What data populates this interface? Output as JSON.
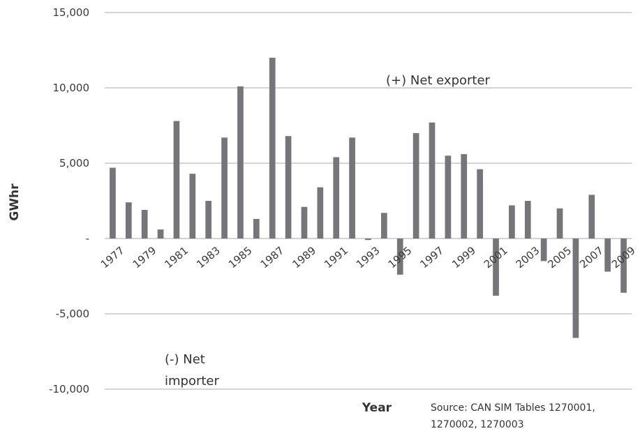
{
  "chart_data": {
    "type": "bar",
    "ylabel": "GWhr",
    "xlabel": "Year",
    "ylim": [
      -10000,
      15000
    ],
    "yticks": [
      15000,
      10000,
      5000,
      0,
      -5000,
      -10000
    ],
    "ytick_labels": [
      "15,000",
      "10,000",
      "5,000",
      "-",
      "-5,000",
      "-10,000"
    ],
    "grid": true,
    "legend": "none",
    "categories": [
      "1977",
      "1978",
      "1979",
      "1980",
      "1981",
      "1982",
      "1983",
      "1984",
      "1985",
      "1986",
      "1987",
      "1988",
      "1989",
      "1990",
      "1991",
      "1992",
      "1993",
      "1994",
      "1995",
      "1996",
      "1997",
      "1998",
      "1999",
      "2000",
      "2001",
      "2002",
      "2003",
      "2004",
      "2005",
      "2006",
      "2007",
      "2008",
      "2009"
    ],
    "x_tick_labels": [
      "1977",
      "1979",
      "1981",
      "1983",
      "1985",
      "1987",
      "1989",
      "1991",
      "1993",
      "1995",
      "1997",
      "1999",
      "2001",
      "2003",
      "2005",
      "2007",
      "2009"
    ],
    "values": [
      4700,
      2400,
      1900,
      600,
      7800,
      4300,
      2500,
      6700,
      10100,
      1300,
      12000,
      6800,
      2100,
      3400,
      5400,
      6700,
      -100,
      1700,
      -2400,
      7000,
      7700,
      5500,
      5600,
      4600,
      -3800,
      2200,
      2500,
      -1500,
      2000,
      -6600,
      2900,
      -2200,
      -3600
    ],
    "annotations": {
      "positive": "(+) Net exporter",
      "negative_line1": "(-) Net",
      "negative_line2": "importer"
    },
    "source_line1": "Source: CAN SIM Tables 1270001,",
    "source_line2": "1270002, 1270003",
    "colors": {
      "bar": "#75757a",
      "grid": "#a7a7a7",
      "text": "#3a3a3a"
    }
  }
}
